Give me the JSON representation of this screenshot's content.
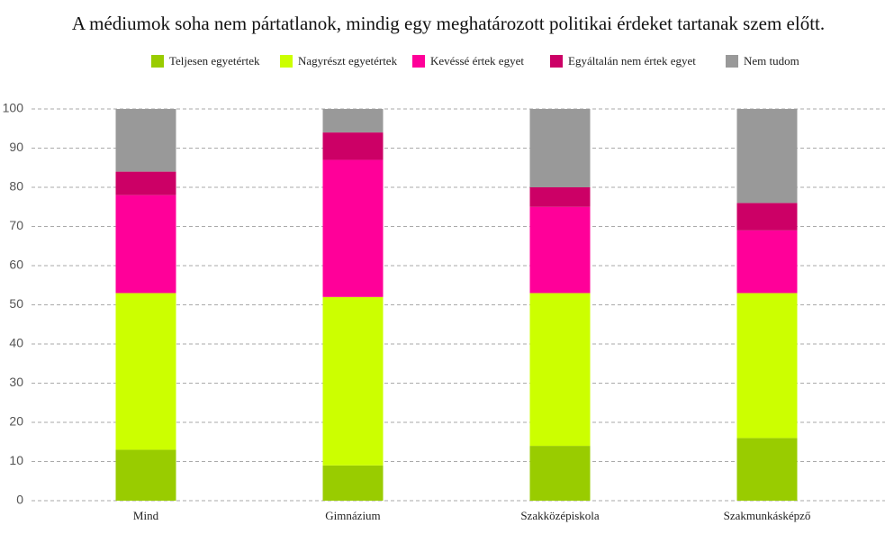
{
  "chart_data": {
    "type": "stacked-bar",
    "title": "A médiumok soha nem pártatlanok, mindig egy meghatározott politikai érdeket tartanak szem előtt.",
    "categories": [
      "Mind",
      "Gimnázium",
      "Szakközépiskola",
      "Szakmunkásképző"
    ],
    "series": [
      {
        "name": "Teljesen egyetértek",
        "color": "#99cc00",
        "values": [
          13,
          9,
          14,
          16
        ]
      },
      {
        "name": "Nagyrészt egyetértek",
        "color": "#ccff00",
        "values": [
          40,
          43,
          39,
          37
        ]
      },
      {
        "name": "Kevéssé értek egyet",
        "color": "#ff0099",
        "values": [
          25,
          35,
          22,
          16
        ]
      },
      {
        "name": "Egyáltalán nem értek egyet",
        "color": "#cc0066",
        "values": [
          6,
          7,
          5,
          7
        ]
      },
      {
        "name": "Nem tudom",
        "color": "#999999",
        "values": [
          16,
          6,
          20,
          24
        ]
      }
    ],
    "ylim": [
      0,
      100
    ],
    "yticks": [
      0,
      10,
      20,
      30,
      40,
      50,
      60,
      70,
      80,
      90,
      100
    ],
    "grid": true
  }
}
